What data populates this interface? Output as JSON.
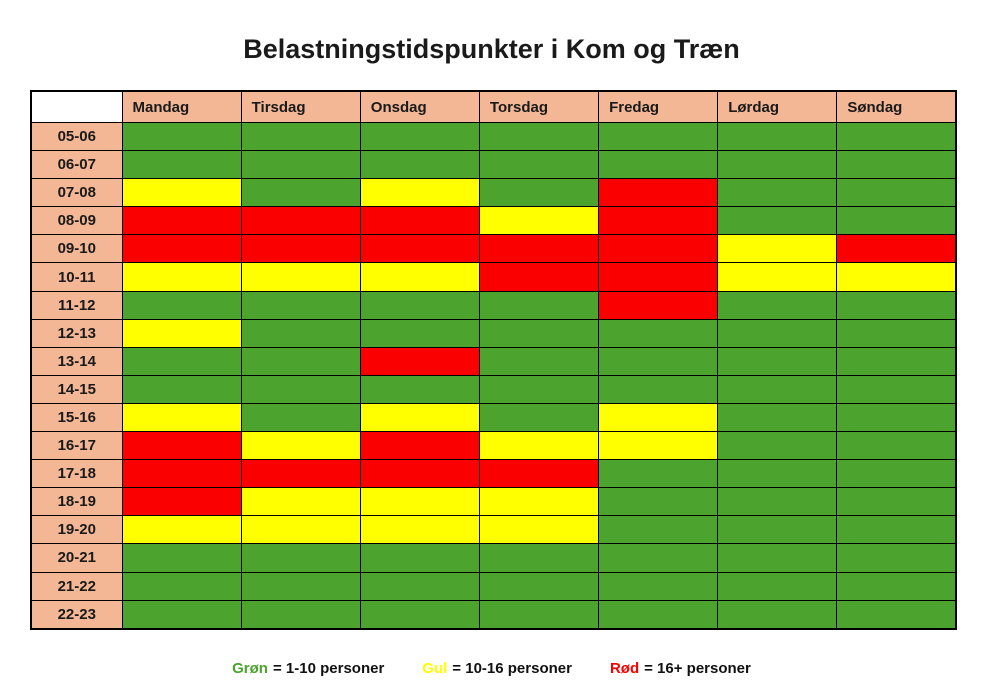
{
  "title": "Belastningstidspunkter i Kom og Træn",
  "colors": {
    "green": "#4ca32d",
    "yellow": "#ffff00",
    "red": "#fb0000",
    "header_bg": "#f3b795",
    "corner_bg": "#ffffff",
    "border": "#000000",
    "title_text": "#1a1a1a"
  },
  "chart_data": {
    "type": "heatmap",
    "title": "Belastningstidspunkter i Kom og Træn",
    "columns": [
      "Mandag",
      "Tirsdag",
      "Onsdag",
      "Torsdag",
      "Fredag",
      "Lørdag",
      "Søndag"
    ],
    "rows": [
      "05-06",
      "06-07",
      "07-08",
      "08-09",
      "09-10",
      "10-11",
      "11-12",
      "12-13",
      "13-14",
      "14-15",
      "15-16",
      "16-17",
      "17-18",
      "18-19",
      "19-20",
      "20-21",
      "21-22",
      "22-23"
    ],
    "value_meaning": {
      "G": "Grøn = 1-10 personer",
      "Y": "Gul = 10-16 personer",
      "R": "Rød = 16+ personer"
    },
    "cell_colors": {
      "G": "#4ca32d",
      "Y": "#ffff00",
      "R": "#fb0000"
    },
    "values": [
      [
        "G",
        "G",
        "G",
        "G",
        "G",
        "G",
        "G"
      ],
      [
        "G",
        "G",
        "G",
        "G",
        "G",
        "G",
        "G"
      ],
      [
        "Y",
        "G",
        "Y",
        "G",
        "R",
        "G",
        "G"
      ],
      [
        "R",
        "R",
        "R",
        "Y",
        "R",
        "G",
        "G"
      ],
      [
        "R",
        "R",
        "R",
        "R",
        "R",
        "Y",
        "R"
      ],
      [
        "Y",
        "Y",
        "Y",
        "R",
        "R",
        "Y",
        "Y"
      ],
      [
        "G",
        "G",
        "G",
        "G",
        "R",
        "G",
        "G"
      ],
      [
        "Y",
        "G",
        "G",
        "G",
        "G",
        "G",
        "G"
      ],
      [
        "G",
        "G",
        "R",
        "G",
        "G",
        "G",
        "G"
      ],
      [
        "G",
        "G",
        "G",
        "G",
        "G",
        "G",
        "G"
      ],
      [
        "Y",
        "G",
        "Y",
        "G",
        "Y",
        "G",
        "G"
      ],
      [
        "R",
        "Y",
        "R",
        "Y",
        "Y",
        "G",
        "G"
      ],
      [
        "R",
        "R",
        "R",
        "R",
        "G",
        "G",
        "G"
      ],
      [
        "R",
        "Y",
        "Y",
        "Y",
        "G",
        "G",
        "G"
      ],
      [
        "Y",
        "Y",
        "Y",
        "Y",
        "G",
        "G",
        "G"
      ],
      [
        "G",
        "G",
        "G",
        "G",
        "G",
        "G",
        "G"
      ],
      [
        "G",
        "G",
        "G",
        "G",
        "G",
        "G",
        "G"
      ],
      [
        "G",
        "G",
        "G",
        "G",
        "G",
        "G",
        "G"
      ]
    ],
    "legend": [
      {
        "term": "Grøn",
        "rest": "= 1-10 personer",
        "color_key": "green"
      },
      {
        "term": "Gul",
        "rest": "= 10-16 personer",
        "color_key": "yellow"
      },
      {
        "term": "Rød",
        "rest": "= 16+ personer",
        "color_key": "red"
      }
    ],
    "legend_position": "bottom",
    "grid": true
  }
}
